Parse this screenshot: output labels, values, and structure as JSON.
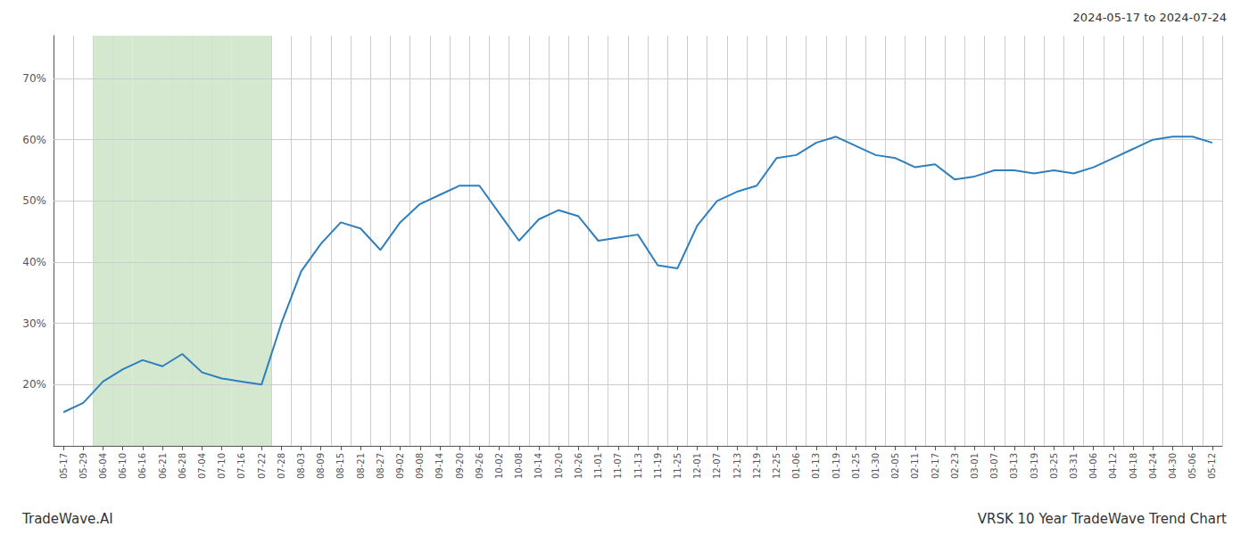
{
  "chart_data": {
    "type": "line",
    "title": "2024-05-17 to 2024-07-24",
    "annotations": [
      "TradeWave.AI",
      "VRSK 10 Year TradeWave Trend Chart"
    ],
    "color": "#2e7fbd",
    "grid": true,
    "highlight": {
      "start": "06-04",
      "end": "07-22",
      "color": "#d4e8d0"
    },
    "ylim": [
      10,
      77
    ],
    "yticks": [
      {
        "value": 20,
        "label": "20%"
      },
      {
        "value": 30,
        "label": "30%"
      },
      {
        "value": 40,
        "label": "40%"
      },
      {
        "value": 50,
        "label": "50%"
      },
      {
        "value": 60,
        "label": "60%"
      },
      {
        "value": 70,
        "label": "70%"
      }
    ],
    "categories": [
      "05-17",
      "05-29",
      "06-04",
      "06-10",
      "06-16",
      "06-21",
      "06-28",
      "07-04",
      "07-10",
      "07-16",
      "07-22",
      "07-28",
      "08-03",
      "08-09",
      "08-15",
      "08-21",
      "08-27",
      "09-02",
      "09-08",
      "09-14",
      "09-20",
      "09-26",
      "10-02",
      "10-08",
      "10-14",
      "10-20",
      "10-26",
      "11-01",
      "11-07",
      "11-13",
      "11-19",
      "11-25",
      "12-01",
      "12-07",
      "12-13",
      "12-19",
      "12-25",
      "01-06",
      "01-13",
      "01-19",
      "01-25",
      "01-30",
      "02-05",
      "02-11",
      "02-17",
      "02-23",
      "03-01",
      "03-07",
      "03-13",
      "03-19",
      "03-25",
      "03-31",
      "04-06",
      "04-12",
      "04-18",
      "04-24",
      "04-30",
      "05-06",
      "05-12"
    ],
    "values": [
      15.5,
      17.0,
      20.5,
      22.5,
      24.0,
      23.0,
      25.0,
      22.0,
      21.0,
      20.5,
      20.0,
      30.0,
      38.5,
      43.0,
      46.5,
      45.5,
      42.0,
      46.5,
      49.5,
      51.0,
      52.5,
      52.5,
      48.0,
      43.5,
      47.0,
      48.5,
      47.5,
      43.5,
      44.0,
      44.5,
      39.5,
      39.0,
      46.0,
      50.0,
      51.5,
      52.5,
      57.0,
      57.5,
      59.5,
      60.5,
      59.0,
      57.5,
      57.0,
      55.5,
      56.0,
      53.5,
      54.0,
      55.0,
      55.0,
      54.5,
      55.0,
      54.5,
      55.5,
      57.0,
      58.5,
      60.0,
      60.5,
      60.5,
      59.5
    ]
  }
}
